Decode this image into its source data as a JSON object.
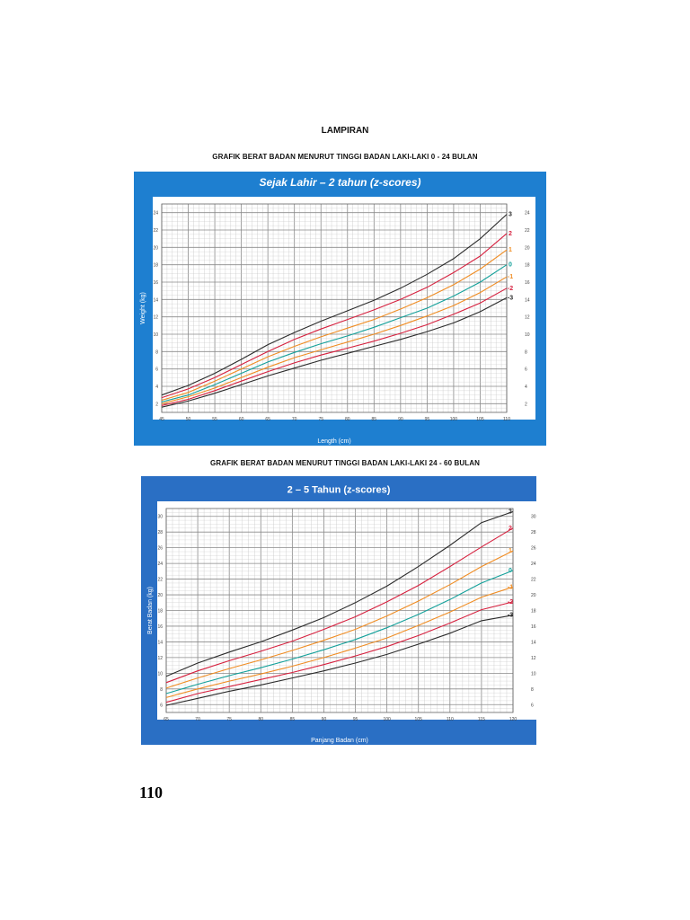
{
  "page": {
    "heading": "LAMPIRAN",
    "page_number": "110"
  },
  "charts": [
    {
      "caption": "GRAFIK BERAT BADAN MENURUT TINGGI BADAN LAKI-LAKI 0 - 24 BULAN"
    },
    {
      "caption": "GRAFIK BERAT BADAN MENURUT TINGGI BADAN LAKI-LAKI 24 - 60 BULAN"
    }
  ],
  "colors": {
    "frame_blue": "#1e7fd0",
    "frame_blue_dark": "#2a6fc4",
    "z3": "#2b2b2b",
    "z2": "#d6203e",
    "z1": "#f08c22",
    "z0": "#13a09a",
    "zm1": "#f08c22",
    "zm2": "#d6203e",
    "zm3": "#2b2b2b",
    "grid_minor": "#c6c6c6",
    "grid_major": "#8a8a8a"
  },
  "chart_data": [
    {
      "type": "line",
      "title": "Sejak Lahir – 2 tahun (z-scores)",
      "xlabel": "Length (cm)",
      "ylabel": "Weight (kg)",
      "xlim": [
        45,
        110
      ],
      "ylim": [
        1,
        25
      ],
      "x_ticks": [
        "45",
        "50",
        "55",
        "60",
        "65",
        "70",
        "75",
        "80",
        "85",
        "90",
        "95",
        "100",
        "105",
        "110"
      ],
      "y_ticks": [
        "2",
        "4",
        "6",
        "8",
        "10",
        "12",
        "14",
        "16",
        "18",
        "20",
        "22",
        "24"
      ],
      "grid": true,
      "legend_position": "right-end-labels",
      "x": [
        45,
        50,
        55,
        60,
        65,
        70,
        75,
        80,
        85,
        90,
        95,
        100,
        105,
        110
      ],
      "series": [
        {
          "name": "3",
          "color_key": "z3",
          "values": [
            3.0,
            4.1,
            5.5,
            7.1,
            8.8,
            10.2,
            11.5,
            12.7,
            13.9,
            15.3,
            16.9,
            18.7,
            21.0,
            23.8
          ]
        },
        {
          "name": "2",
          "color_key": "z2",
          "values": [
            2.7,
            3.7,
            5.0,
            6.5,
            8.0,
            9.4,
            10.6,
            11.7,
            12.8,
            14.0,
            15.4,
            17.1,
            19.0,
            21.6
          ]
        },
        {
          "name": "1",
          "color_key": "z1",
          "values": [
            2.4,
            3.3,
            4.6,
            6.0,
            7.4,
            8.6,
            9.7,
            10.7,
            11.7,
            12.9,
            14.2,
            15.7,
            17.5,
            19.7
          ]
        },
        {
          "name": "0",
          "color_key": "z0",
          "values": [
            2.2,
            3.0,
            4.2,
            5.5,
            6.8,
            7.9,
            8.9,
            9.8,
            10.8,
            11.9,
            13.0,
            14.4,
            16.0,
            18.0
          ]
        },
        {
          "name": "-1",
          "color_key": "zm1",
          "values": [
            2.0,
            2.8,
            3.8,
            5.0,
            6.2,
            7.3,
            8.2,
            9.1,
            10.0,
            11.0,
            12.1,
            13.3,
            14.8,
            16.6
          ]
        },
        {
          "name": "-2",
          "color_key": "zm2",
          "values": [
            1.8,
            2.5,
            3.5,
            4.6,
            5.7,
            6.7,
            7.6,
            8.4,
            9.2,
            10.1,
            11.1,
            12.3,
            13.6,
            15.3
          ]
        },
        {
          "name": "-3",
          "color_key": "zm3",
          "values": [
            1.6,
            2.3,
            3.2,
            4.2,
            5.2,
            6.1,
            7.0,
            7.8,
            8.6,
            9.4,
            10.3,
            11.3,
            12.6,
            14.2
          ]
        }
      ]
    },
    {
      "type": "line",
      "title": "2 – 5 Tahun (z-scores)",
      "xlabel": "Panjang Badan (cm)",
      "ylabel": "Berat Badan (kg)",
      "xlim": [
        65,
        120
      ],
      "ylim": [
        5,
        31
      ],
      "x_ticks": [
        "65",
        "70",
        "75",
        "80",
        "85",
        "90",
        "95",
        "100",
        "105",
        "110",
        "115",
        "120"
      ],
      "y_ticks": [
        "6",
        "8",
        "10",
        "12",
        "14",
        "16",
        "18",
        "20",
        "22",
        "24",
        "26",
        "28",
        "30"
      ],
      "grid": true,
      "legend_position": "right-end-labels",
      "x": [
        65,
        70,
        75,
        80,
        85,
        90,
        95,
        100,
        105,
        110,
        115,
        120
      ],
      "series": [
        {
          "name": "3",
          "color_key": "z3",
          "values": [
            9.6,
            11.3,
            12.7,
            14.0,
            15.5,
            17.1,
            19.0,
            21.1,
            23.6,
            26.3,
            29.2,
            30.6
          ]
        },
        {
          "name": "2",
          "color_key": "z2",
          "values": [
            8.8,
            10.3,
            11.6,
            12.8,
            14.1,
            15.6,
            17.2,
            19.1,
            21.2,
            23.6,
            26.1,
            28.5
          ]
        },
        {
          "name": "1",
          "color_key": "z1",
          "values": [
            8.1,
            9.4,
            10.6,
            11.7,
            12.9,
            14.2,
            15.6,
            17.3,
            19.2,
            21.3,
            23.6,
            25.6
          ]
        },
        {
          "name": "0",
          "color_key": "z0",
          "values": [
            7.4,
            8.6,
            9.7,
            10.7,
            11.8,
            13.0,
            14.3,
            15.8,
            17.5,
            19.4,
            21.5,
            23.1
          ]
        },
        {
          "name": "-1",
          "color_key": "zm1",
          "values": [
            6.9,
            8.0,
            9.0,
            9.9,
            10.9,
            12.0,
            13.2,
            14.5,
            16.1,
            17.8,
            19.7,
            21.0
          ]
        },
        {
          "name": "-2",
          "color_key": "zm2",
          "values": [
            6.3,
            7.4,
            8.3,
            9.2,
            10.1,
            11.1,
            12.2,
            13.4,
            14.8,
            16.4,
            18.1,
            19.1
          ]
        },
        {
          "name": "-3",
          "color_key": "zm3",
          "values": [
            5.9,
            6.8,
            7.7,
            8.5,
            9.4,
            10.3,
            11.3,
            12.4,
            13.7,
            15.1,
            16.7,
            17.4
          ]
        }
      ]
    }
  ]
}
